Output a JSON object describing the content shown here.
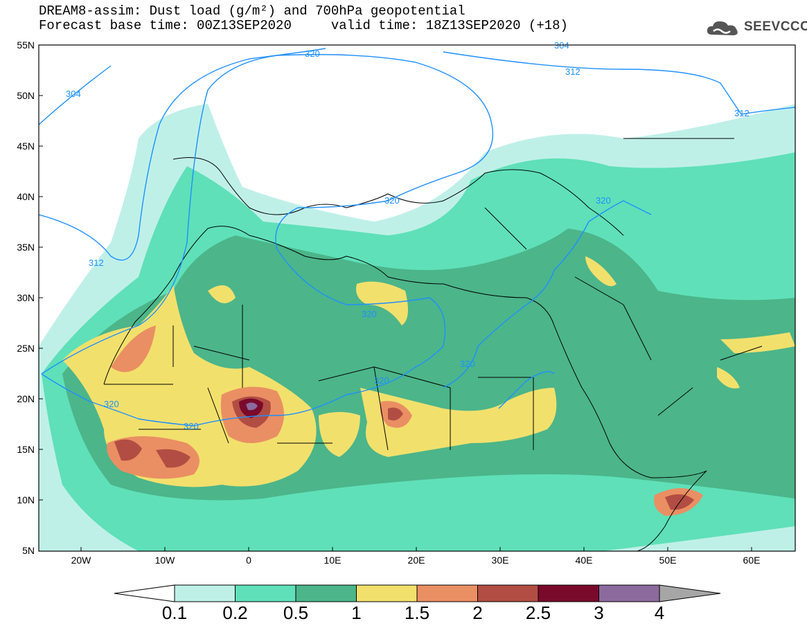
{
  "title": {
    "line1": "DREAM8-assim: Dust load (g/m²) and 700hPa geopotential",
    "line2": "Forecast base time: 00Z13SEP2020     valid time: 18Z13SEP2020 (+18)"
  },
  "logo": {
    "text": "SEEVCCC",
    "icon": "cloud-icon"
  },
  "axes": {
    "lat_labels": [
      "55N",
      "50N",
      "45N",
      "40N",
      "35N",
      "30N",
      "25N",
      "20N",
      "15N",
      "10N",
      "5N"
    ],
    "lon_labels": [
      "20W",
      "10W",
      "0",
      "10E",
      "20E",
      "30E",
      "40E",
      "50E",
      "60E"
    ]
  },
  "contour_labels": [
    "304",
    "304",
    "312",
    "312",
    "312",
    "320",
    "320",
    "320",
    "320",
    "320",
    "320",
    "320",
    "320"
  ],
  "colorbar": {
    "labels": [
      "0.1",
      "0.2",
      "0.5",
      "1",
      "1.5",
      "2",
      "2.5",
      "3",
      "4"
    ],
    "colors": [
      "#bff0e8",
      "#5fe0b8",
      "#4cb58a",
      "#f2e06c",
      "#ea8f63",
      "#b24d43",
      "#7a0a2c",
      "#8c6a9e",
      "#a6a6a6"
    ]
  },
  "colors": {
    "contour": "#1e90ff",
    "borders": "#000000"
  }
}
